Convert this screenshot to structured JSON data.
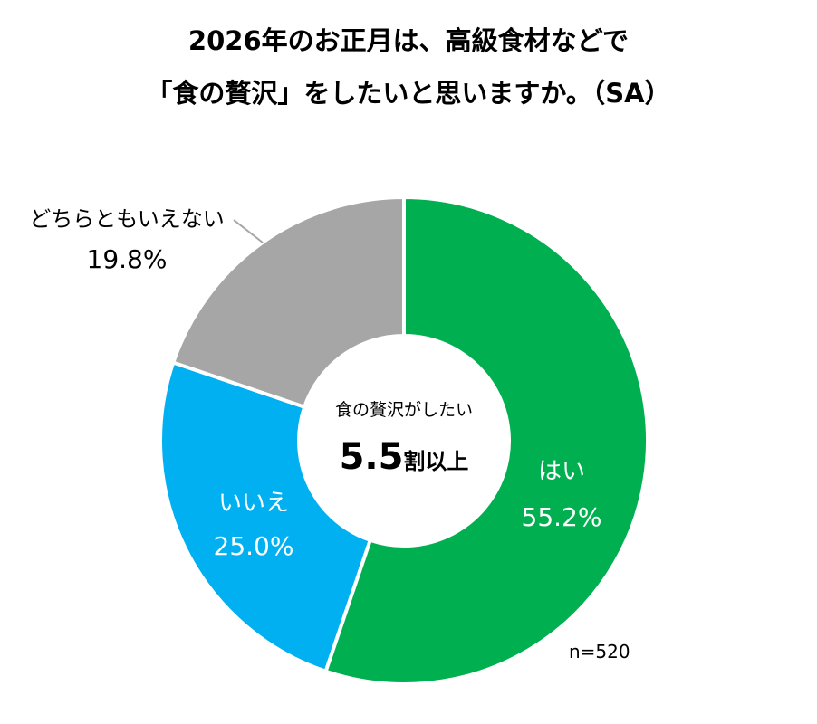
{
  "chart_data": {
    "type": "pie",
    "variant": "donut",
    "title_lines": [
      "2026年のお正月は、高級食材などで",
      "「食の贅沢」をしたいと思いますか。（SA）"
    ],
    "slices": [
      {
        "label": "はい",
        "value": 55.2,
        "value_label": "55.2%",
        "color": "#00B050"
      },
      {
        "label": "いいえ",
        "value": 25.0,
        "value_label": "25.0%",
        "color": "#00B0F0"
      },
      {
        "label": "どちらともいえない",
        "value": 19.8,
        "value_label": "19.8%",
        "color": "#A6A6A6"
      }
    ],
    "center_text": {
      "line1": "食の贅沢がしたい",
      "big": "5.5",
      "suffix": "割以上"
    },
    "note": "n=520",
    "start": "top",
    "direction": "clockwise"
  }
}
